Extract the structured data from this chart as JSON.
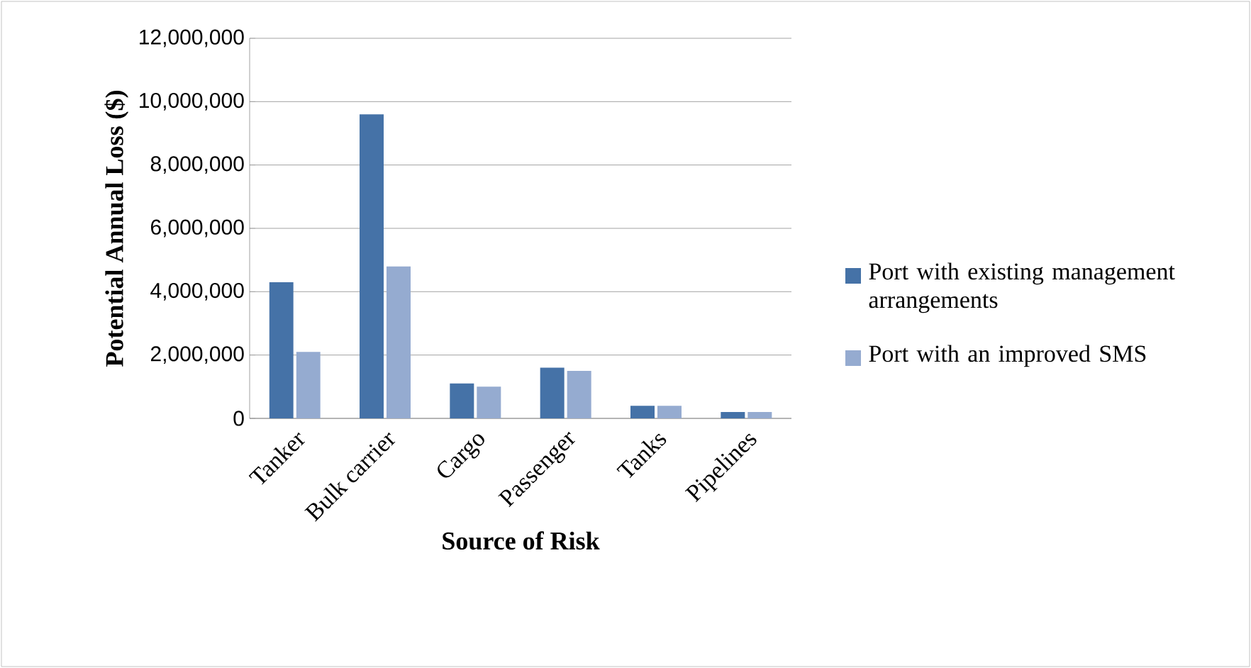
{
  "chart_data": {
    "type": "bar",
    "xlabel": "Source of Risk",
    "ylabel": "Potential Annual Loss ($)",
    "categories": [
      "Tanker",
      "Bulk carrier",
      "Cargo",
      "Passenger",
      "Tanks",
      "Pipelines"
    ],
    "series": [
      {
        "name": "Port with existing management arrangements",
        "color": "#4572a7",
        "values": [
          4300000,
          9600000,
          1100000,
          1600000,
          400000,
          200000
        ]
      },
      {
        "name": "Port with an improved SMS",
        "color": "#95abd0",
        "values": [
          2100000,
          4800000,
          1000000,
          1500000,
          400000,
          200000
        ]
      }
    ],
    "ylim": [
      0,
      12000000
    ],
    "yticks": [
      {
        "value": 0,
        "label": "0"
      },
      {
        "value": 2000000,
        "label": "2,000,000"
      },
      {
        "value": 4000000,
        "label": "4,000,000"
      },
      {
        "value": 6000000,
        "label": "6,000,000"
      },
      {
        "value": 8000000,
        "label": "8,000,000"
      },
      {
        "value": 10000000,
        "label": "10,000,000"
      },
      {
        "value": 12000000,
        "label": "12,000,000"
      }
    ],
    "grid": "y",
    "legend": "right"
  }
}
